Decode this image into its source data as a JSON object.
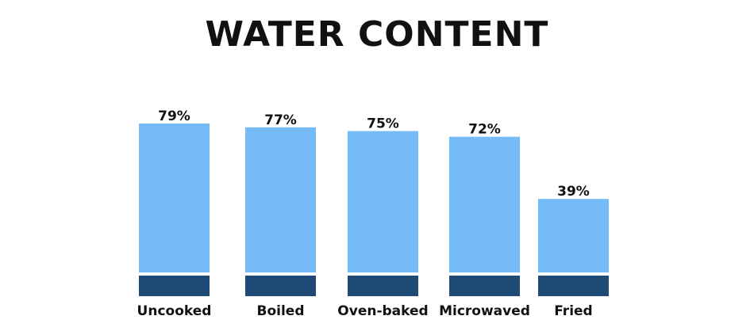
{
  "chart_data": {
    "type": "bar",
    "title": "WATER CONTENT",
    "categories": [
      "Uncooked",
      "Boiled",
      "Oven-baked",
      "Microwaved",
      "Fried"
    ],
    "values": [
      79,
      77,
      75,
      72,
      39
    ],
    "value_labels": [
      "79%",
      "77%",
      "75%",
      "72%",
      "39%"
    ],
    "xlabel": "",
    "ylabel": "",
    "unit": "%",
    "grid": false,
    "legend": "none",
    "colors": {
      "bar": "#74bbf7",
      "base": "#1f4a75",
      "text": "#111111"
    }
  }
}
